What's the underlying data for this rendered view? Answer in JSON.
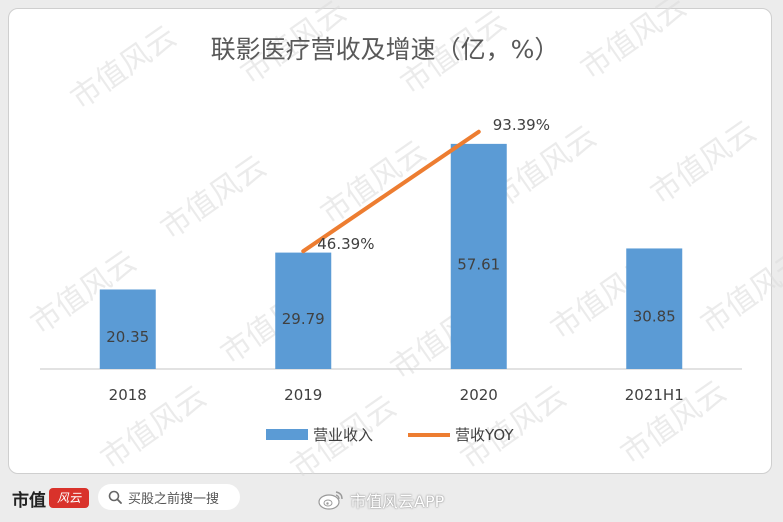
{
  "chart_data": {
    "type": "bar",
    "title": "联影医疗营收及增速（亿，%）",
    "categories": [
      "2018",
      "2019",
      "2020",
      "2021H1"
    ],
    "series": [
      {
        "name": "营业收入",
        "kind": "bar",
        "values": [
          20.35,
          29.79,
          57.61,
          30.85
        ],
        "labels": [
          "20.35",
          "29.79",
          "57.61",
          "30.85"
        ],
        "color": "#5b9bd5"
      },
      {
        "name": "营收YOY",
        "kind": "line",
        "values": [
          null,
          46.39,
          93.39,
          null
        ],
        "labels": [
          "",
          "46.39%",
          "93.39%",
          ""
        ],
        "color": "#ed7d31"
      }
    ],
    "ylim": [
      0,
      65
    ],
    "y2lim": [
      0,
      100
    ],
    "grid": false,
    "legend": "bottom"
  },
  "watermark": "市值风云",
  "footer": {
    "brand": "市值",
    "brand_seal": "风云",
    "search_placeholder": "买股之前搜一搜",
    "weibo_account": "市值风云APP"
  },
  "colors": {
    "bar": "#5b9bd5",
    "line": "#ed7d31",
    "footer_seal": "#d9322b"
  }
}
